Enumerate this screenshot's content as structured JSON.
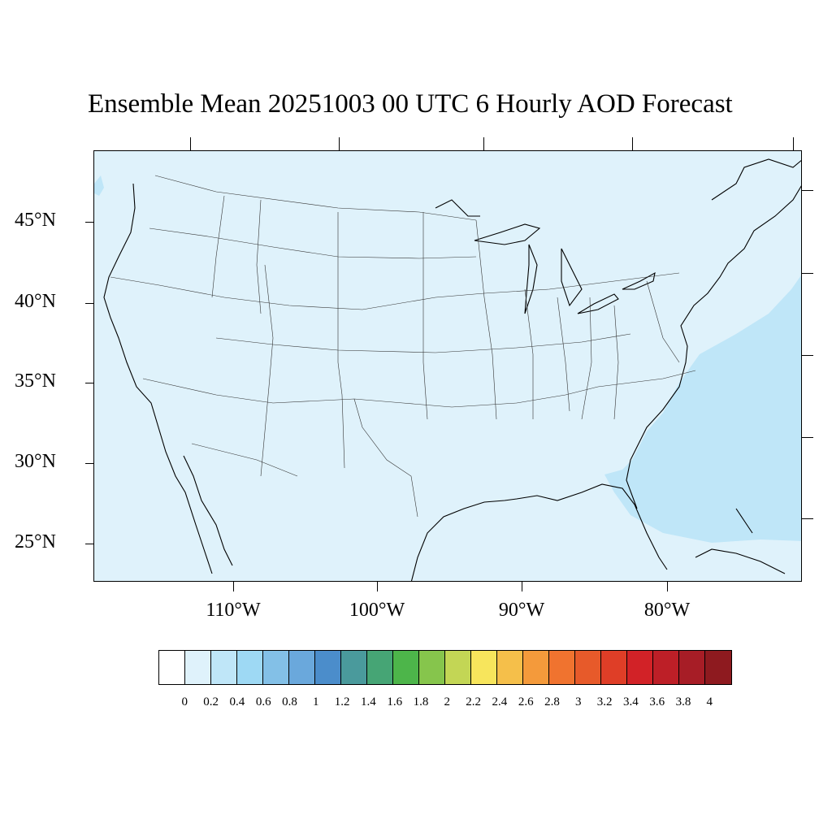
{
  "title": "Ensemble Mean 20251003 00 UTC 6 Hourly AOD Forecast",
  "latitude_labels": [
    "45°N",
    "40°N",
    "35°N",
    "30°N",
    "25°N"
  ],
  "longitude_labels": [
    "110°W",
    "100°W",
    "90°W",
    "80°W"
  ],
  "colorbar": {
    "colors": [
      "#ffffff",
      "#dff2fb",
      "#bfe6f8",
      "#9ed9f4",
      "#83c0e7",
      "#6aa8dc",
      "#4b8dcb",
      "#4a9a9c",
      "#46a575",
      "#4db54a",
      "#86c54c",
      "#c3d655",
      "#f7e55c",
      "#f5bf4a",
      "#f49a3b",
      "#f0732f",
      "#e75a2a",
      "#df3e27",
      "#d22227",
      "#bd1f27",
      "#a71d26",
      "#8e1a1f"
    ],
    "labels": [
      "0",
      "0.2",
      "0.4",
      "0.6",
      "0.8",
      "1",
      "1.2",
      "1.4",
      "1.6",
      "1.8",
      "2",
      "2.2",
      "2.4",
      "2.6",
      "2.8",
      "3",
      "3.2",
      "3.4",
      "3.6",
      "3.8",
      "4"
    ]
  },
  "map_colors": {
    "background_level": "#dff2fb",
    "higher_level": "#bfe6f8"
  }
}
